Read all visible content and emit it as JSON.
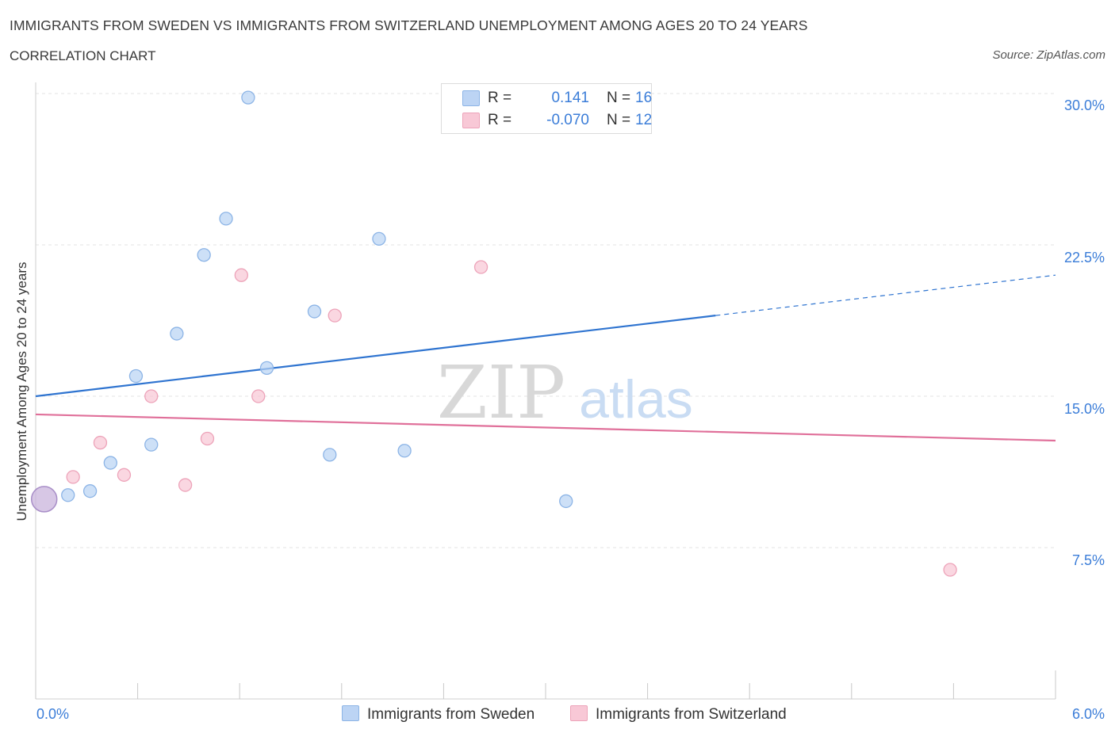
{
  "header": {
    "title": "IMMIGRANTS FROM SWEDEN VS IMMIGRANTS FROM SWITZERLAND UNEMPLOYMENT AMONG AGES 20 TO 24 YEARS",
    "subtitle": "CORRELATION CHART",
    "source": "Source: ZipAtlas.com"
  },
  "legend": {
    "rows": [
      {
        "r_label": "R =",
        "r_value": "0.141",
        "n_label": "N =",
        "n_value": "16"
      },
      {
        "r_label": "R =",
        "r_value": "-0.070",
        "n_label": "N =",
        "n_value": "12"
      }
    ]
  },
  "watermark": {
    "zip": "ZIP",
    "atlas": "atlas"
  },
  "colors": {
    "sweden_fill": "#b8d3f4",
    "sweden_stroke": "#8cb4e6",
    "sweden_line": "#2f74d0",
    "swiss_fill": "#f8c6d4",
    "swiss_stroke": "#eda3b9",
    "swiss_line": "#e0709a",
    "accent_text": "#3b7dd8",
    "grid": "#e3e3e3"
  },
  "chart_data": {
    "type": "scatter",
    "title": "IMMIGRANTS FROM SWEDEN VS IMMIGRANTS FROM SWITZERLAND UNEMPLOYMENT AMONG AGES 20 TO 24 YEARS",
    "xlabel": "",
    "ylabel": "Unemployment Among Ages 20 to 24 years",
    "xlim": [
      0,
      6.0
    ],
    "ylim": [
      0,
      30.0
    ],
    "x_tick_labels": [
      "0.0%",
      "6.0%"
    ],
    "y_ticks": [
      7.5,
      15.0,
      22.5,
      30.0
    ],
    "y_tick_labels": [
      "7.5%",
      "15.0%",
      "22.5%",
      "30.0%"
    ],
    "grid": true,
    "series": [
      {
        "name": "Immigrants from Sweden",
        "points": [
          {
            "x": 0.05,
            "y": 9.9,
            "big": true
          },
          {
            "x": 0.19,
            "y": 10.1
          },
          {
            "x": 0.32,
            "y": 10.3
          },
          {
            "x": 0.44,
            "y": 11.7
          },
          {
            "x": 0.59,
            "y": 16.0
          },
          {
            "x": 0.68,
            "y": 12.6
          },
          {
            "x": 0.83,
            "y": 18.1
          },
          {
            "x": 0.99,
            "y": 22.0
          },
          {
            "x": 1.12,
            "y": 23.8
          },
          {
            "x": 1.25,
            "y": 29.8
          },
          {
            "x": 1.36,
            "y": 16.4
          },
          {
            "x": 1.64,
            "y": 19.2
          },
          {
            "x": 1.73,
            "y": 12.1
          },
          {
            "x": 2.02,
            "y": 22.8
          },
          {
            "x": 2.17,
            "y": 12.3
          },
          {
            "x": 3.12,
            "y": 9.8
          }
        ],
        "trend": {
          "x0": 0.0,
          "y0": 15.0,
          "x1": 4.0,
          "y1": 19.0,
          "x_dash_end": 6.0,
          "y_dash_end": 21.0
        }
      },
      {
        "name": "Immigrants from Switzerland",
        "points": [
          {
            "x": 0.05,
            "y": 9.9,
            "big": true
          },
          {
            "x": 0.22,
            "y": 11.0
          },
          {
            "x": 0.38,
            "y": 12.7
          },
          {
            "x": 0.52,
            "y": 11.1
          },
          {
            "x": 0.68,
            "y": 15.0
          },
          {
            "x": 0.88,
            "y": 10.6
          },
          {
            "x": 1.01,
            "y": 12.9
          },
          {
            "x": 1.21,
            "y": 21.0
          },
          {
            "x": 1.31,
            "y": 15.0
          },
          {
            "x": 1.76,
            "y": 19.0
          },
          {
            "x": 2.62,
            "y": 21.4
          },
          {
            "x": 5.38,
            "y": 6.4
          }
        ],
        "trend": {
          "x0": 0.0,
          "y0": 14.1,
          "x1": 6.0,
          "y1": 12.8
        }
      }
    ]
  },
  "bottom_legend": {
    "sweden_label": "Immigrants from Sweden",
    "swiss_label": "Immigrants from Switzerland"
  }
}
